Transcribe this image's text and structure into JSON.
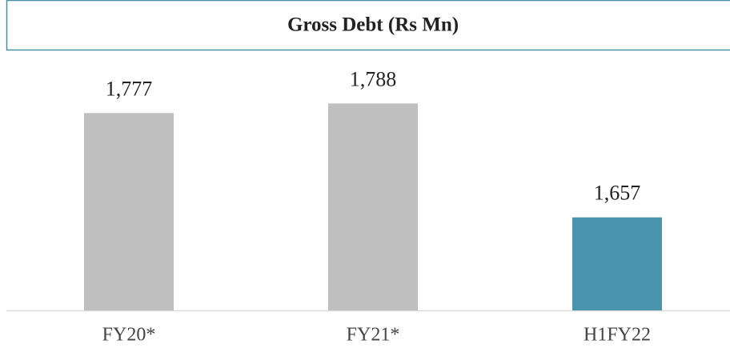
{
  "chart_data": {
    "type": "bar",
    "title": "Gross Debt (Rs Mn)",
    "categories": [
      "FY20*",
      "FY21*",
      "H1FY22"
    ],
    "values": [
      1777,
      1788,
      1657
    ],
    "value_labels": [
      "1,777",
      "1,788",
      "1,657"
    ],
    "colors": [
      "#bfbfbf",
      "#bfbfbf",
      "#4a94ad"
    ],
    "ylim": [
      1550,
      1815
    ]
  }
}
